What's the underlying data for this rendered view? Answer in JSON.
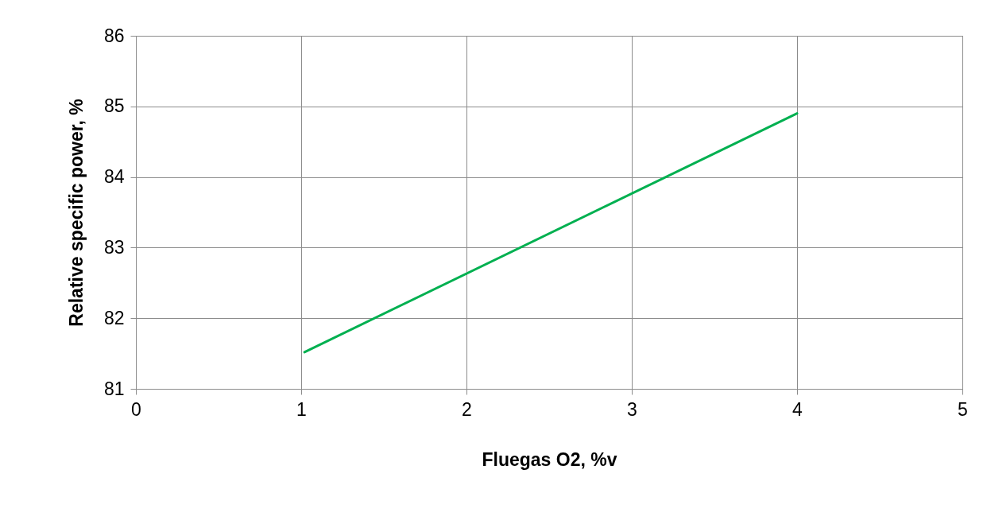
{
  "chart_data": {
    "type": "line",
    "xlabel": "Fluegas O2, %v",
    "ylabel": "Relative specific power, %",
    "x": [
      1.02,
      4.0
    ],
    "series": [
      {
        "color": "#00b050",
        "values": [
          81.52,
          84.9
        ]
      }
    ],
    "xlim": [
      0,
      5
    ],
    "xticks": [
      0,
      1,
      2,
      3,
      4,
      5
    ],
    "ylim": [
      81,
      86
    ],
    "yticks": [
      81,
      82,
      83,
      84,
      85,
      86
    ],
    "grid": true,
    "marker": "none",
    "line_style": "solid"
  }
}
